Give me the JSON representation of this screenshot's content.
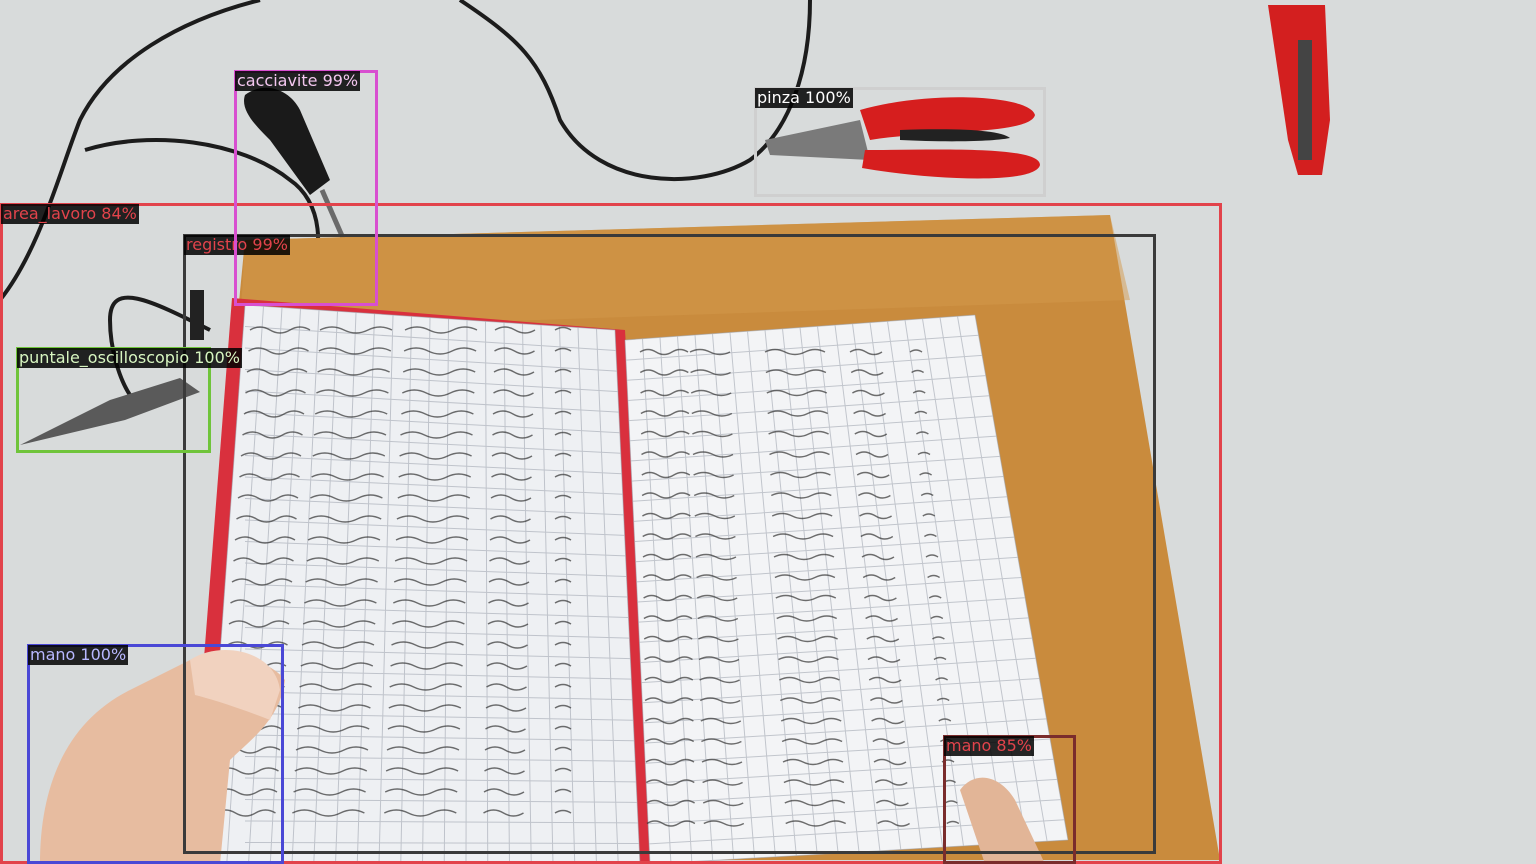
{
  "detections": [
    {
      "label": "area_lavoro 84%",
      "color": "#e2434b"
    },
    {
      "label": "registro 99%",
      "color": "#3a3a3a",
      "text_color": "#e2434b"
    },
    {
      "label": "cacciavite 99%",
      "color": "#d84fd0",
      "text_color": "#f3c6ef"
    },
    {
      "label": "pinza 100%",
      "color": "#cfcfcf",
      "text_color": "#ffffff"
    },
    {
      "label": "puntale_oscilloscopio 100%",
      "color": "#6fc43a",
      "text_color": "#d7f5c0"
    },
    {
      "label": "mano 100%",
      "color": "#4a48d6",
      "text_color": "#b8b8ff"
    },
    {
      "label": "mano 85%",
      "color": "#7a2c2c",
      "text_color": "#e2434b"
    }
  ]
}
